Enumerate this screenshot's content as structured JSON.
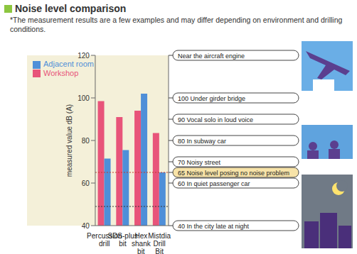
{
  "chart_data": {
    "type": "bar",
    "title": "Noise level comparison",
    "subtitle": "*The measurement results are a few examples and may differ depending on environment and drilling  conditions.",
    "y_label": "measured value dB (A)",
    "categories": [
      "Percussion drill",
      "SDS-plus bit",
      "Hex shank bit",
      "Mistdia Drill Bit"
    ],
    "series": [
      {
        "name": "Workshop",
        "color": "#e8547a",
        "values": [
          98.5,
          91,
          94,
          83.5
        ]
      },
      {
        "name": "Adjacent room",
        "color": "#4f8fd8",
        "values": [
          71.5,
          75.5,
          102,
          65
        ]
      }
    ],
    "ylim": [
      40,
      120
    ],
    "yticks": [
      40,
      60,
      80,
      100,
      120
    ],
    "legend": "top-left",
    "reference_lines": [
      {
        "y": 65,
        "color": "#c0392b"
      },
      {
        "y": 49,
        "color": "#333333"
      }
    ],
    "annotations": [
      {
        "value": 120,
        "text": "Near the aircraft engine"
      },
      {
        "value": 100,
        "text": "100 Under girder bridge"
      },
      {
        "value": 90,
        "text": "90 Vocal solo in loud voice"
      },
      {
        "value": 80,
        "text": "80 In subway car"
      },
      {
        "value": 70,
        "text": "70 Noisy street"
      },
      {
        "value": 65,
        "text": "65 Noise level posing no noise problem",
        "color": "#f7e3a8"
      },
      {
        "value": 60,
        "text": "60 In quiet passenger car"
      },
      {
        "value": 40,
        "text": "40 In the city late at night"
      }
    ]
  }
}
